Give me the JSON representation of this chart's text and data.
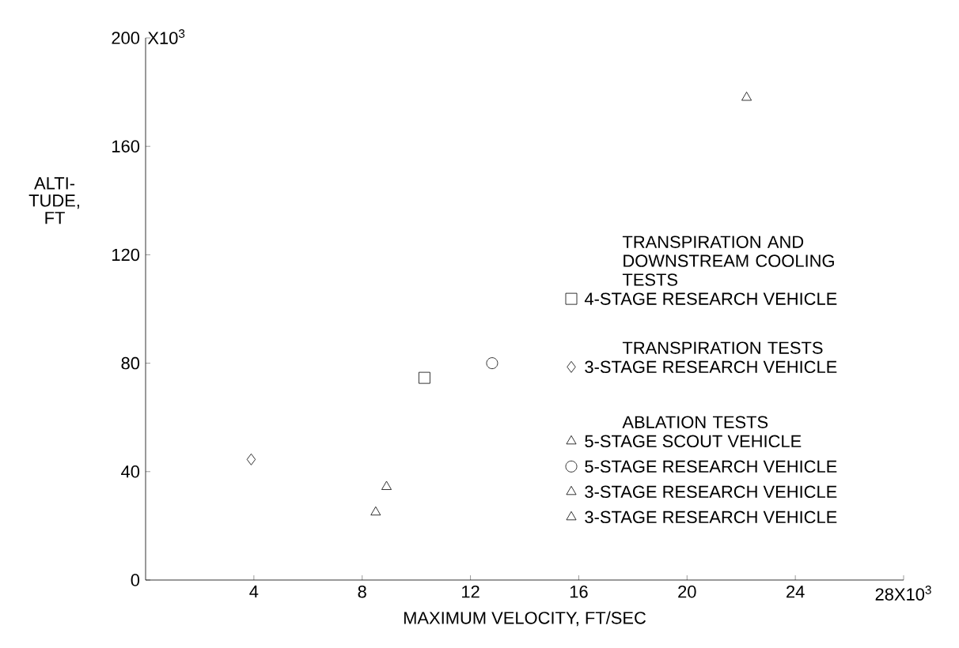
{
  "chart_data": {
    "type": "scatter",
    "xlabel": "MAXIMUM VELOCITY, FT/SEC",
    "ylabel": "ALTI-TUDE, FT",
    "xlim": [
      0,
      28
    ],
    "ylim": [
      0,
      200
    ],
    "xticks": [
      4,
      8,
      12,
      16,
      20,
      24,
      {
        "value": 28,
        "label": "28X10$^{3}$"
      }
    ],
    "yticks": [
      0,
      40,
      80,
      120,
      160,
      200
    ],
    "annotations": [
      "TRANSPIRATION AND DOWNSTREAM COOLING TESTS",
      "TRANSPIRATION TESTS",
      "ABLATION TESTS",
      "X10$^{3}$"
    ],
    "legend": "right",
    "grid": false,
    "series": [
      {
        "name": "4-STAGE RESEARCH VEHICLE",
        "color": "#000000",
        "marker": "square",
        "x": [
          10.3
        ],
        "values": [
          74.6
        ]
      },
      {
        "name": "3-STAGE RESEARCH VEHICLE",
        "color": "#000000",
        "marker": "diamond",
        "x": [
          3.9
        ],
        "values": [
          44.5
        ]
      },
      {
        "name": "5-STAGE SCOUT VEHICLE",
        "color": "#000000",
        "marker": "triangle",
        "x": [
          22.2
        ],
        "values": [
          178
        ]
      },
      {
        "name": "5-STAGE RESEARCH VEHICLE",
        "color": "#000000",
        "marker": "circle",
        "x": [
          12.8
        ],
        "values": [
          80
        ]
      },
      {
        "name": "3-STAGE RESEARCH VEHICLE",
        "color": "#000000",
        "marker": "triangle",
        "x": [
          8.5
        ],
        "values": [
          25
        ]
      },
      {
        "name": "3-STAGE RESEARCH VEHICLE",
        "color": "#000000",
        "marker": "triangle",
        "x": [
          8.9
        ],
        "values": [
          34.4
        ]
      }
    ]
  }
}
